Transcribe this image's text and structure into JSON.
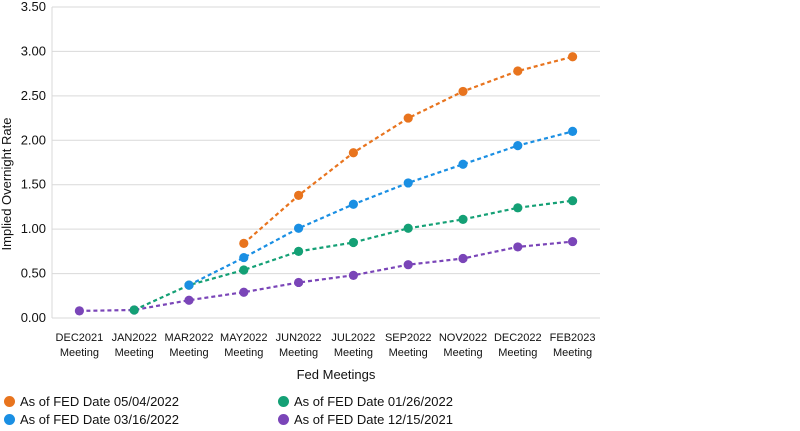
{
  "chart_data": {
    "type": "line",
    "xlabel": "Fed Meetings",
    "ylabel": "Implied Overnight Rate",
    "ylim": [
      0,
      3.5
    ],
    "yticks": [
      "0.00",
      "0.50",
      "1.00",
      "1.50",
      "2.00",
      "2.50",
      "3.00",
      "3.50"
    ],
    "grid": true,
    "legend_position": "bottom",
    "categories": [
      [
        "DEC2021",
        "Meeting"
      ],
      [
        "JAN2022",
        "Meeting"
      ],
      [
        "MAR2022",
        "Meeting"
      ],
      [
        "MAY2022",
        "Meeting"
      ],
      [
        "JUN2022",
        "Meeting"
      ],
      [
        "JUL2022",
        "Meeting"
      ],
      [
        "SEP2022",
        "Meeting"
      ],
      [
        "NOV2022",
        "Meeting"
      ],
      [
        "DEC2022",
        "Meeting"
      ],
      [
        "FEB2023",
        "Meeting"
      ]
    ],
    "series": [
      {
        "name": "As of FED Date 05/04/2022",
        "color": "#E8741E",
        "values": [
          null,
          null,
          null,
          0.84,
          1.38,
          1.86,
          2.25,
          2.55,
          2.78,
          2.94
        ]
      },
      {
        "name": "As of FED Date 03/16/2022",
        "color": "#1A8FE3",
        "values": [
          null,
          null,
          0.37,
          0.68,
          1.01,
          1.28,
          1.52,
          1.73,
          1.94,
          2.1
        ]
      },
      {
        "name": "As of FED Date 01/26/2022",
        "color": "#14A075",
        "values": [
          null,
          0.09,
          0.37,
          0.54,
          0.75,
          0.85,
          1.01,
          1.11,
          1.24,
          1.32
        ]
      },
      {
        "name": "As of FED Date 12/15/2021",
        "color": "#7A45B8",
        "values": [
          0.08,
          0.09,
          0.2,
          0.29,
          0.4,
          0.48,
          0.6,
          0.67,
          0.8,
          0.86
        ]
      }
    ]
  }
}
